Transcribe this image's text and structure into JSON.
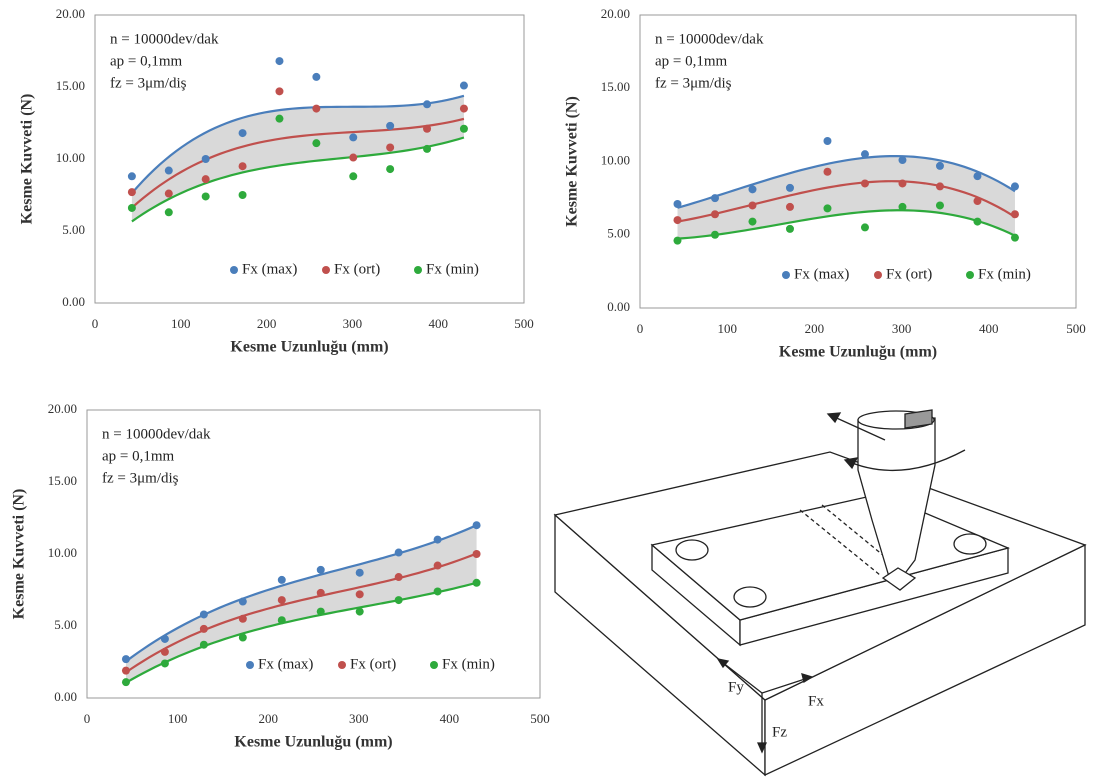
{
  "chart_data": [
    {
      "type": "scatter",
      "annotations": [
        "n = 10000dev/dak",
        "ap = 0,1mm",
        "fz = 3μm/diş"
      ],
      "x_label": "Kesme Uzunluğu (mm)",
      "y_label": "Kesme Kuvveti (N)",
      "x": [
        43,
        86,
        129,
        172,
        215,
        258,
        301,
        344,
        387,
        430
      ],
      "series": [
        {
          "name": "Fx (max)",
          "color": "#4a7ebb",
          "values": [
            8.8,
            9.2,
            10.0,
            11.8,
            16.8,
            15.7,
            11.5,
            12.3,
            13.8,
            15.1
          ]
        },
        {
          "name": "Fx (ort)",
          "color": "#c0504d",
          "values": [
            7.7,
            7.6,
            8.6,
            9.5,
            14.7,
            13.5,
            10.1,
            10.8,
            12.1,
            13.5
          ]
        },
        {
          "name": "Fx (min)",
          "color": "#2eaa3c",
          "values": [
            6.6,
            6.3,
            7.4,
            7.5,
            12.8,
            11.1,
            8.8,
            9.3,
            10.7,
            12.1
          ]
        }
      ],
      "xlim": [
        0,
        500
      ],
      "xticks": [
        0,
        100,
        200,
        300,
        400,
        500
      ],
      "ylim": [
        0,
        20
      ],
      "yticks": [
        {
          "value": 0,
          "label": "0.00"
        },
        {
          "value": 5,
          "label": "5.00"
        },
        {
          "value": 10,
          "label": "10.00"
        },
        {
          "value": 15,
          "label": "15.00"
        },
        {
          "value": 20,
          "label": "20.00"
        }
      ],
      "grid": false,
      "legend": "lower right",
      "trendline": {
        "type": "polynomial",
        "order": 3
      },
      "band_color": "#d9d9d9"
    },
    {
      "type": "scatter",
      "annotations": [
        "n = 10000dev/dak",
        "ap = 0,1mm",
        "fz = 3μm/diş"
      ],
      "x_label": "Kesme Uzunluğu (mm)",
      "y_label": "Kesme Kuvveti (N)",
      "x": [
        43,
        86,
        129,
        172,
        215,
        258,
        301,
        344,
        387,
        430
      ],
      "series": [
        {
          "name": "Fx (max)",
          "color": "#4a7ebb",
          "values": [
            7.1,
            7.5,
            8.1,
            8.2,
            11.4,
            10.5,
            10.1,
            9.7,
            9.0,
            8.3
          ]
        },
        {
          "name": "Fx (ort)",
          "color": "#c0504d",
          "values": [
            6.0,
            6.4,
            7.0,
            6.9,
            9.3,
            8.5,
            8.5,
            8.3,
            7.3,
            6.4
          ]
        },
        {
          "name": "Fx (min)",
          "color": "#2eaa3c",
          "values": [
            4.6,
            5.0,
            5.9,
            5.4,
            6.8,
            5.5,
            6.9,
            7.0,
            5.9,
            4.8
          ]
        }
      ],
      "xlim": [
        0,
        500
      ],
      "xticks": [
        0,
        100,
        200,
        300,
        400,
        500
      ],
      "ylim": [
        0,
        20
      ],
      "yticks": [
        {
          "value": 0,
          "label": "0.00"
        },
        {
          "value": 5,
          "label": "5.00"
        },
        {
          "value": 10,
          "label": "10.00"
        },
        {
          "value": 15,
          "label": "15.00"
        },
        {
          "value": 20,
          "label": "20.00"
        }
      ],
      "grid": false,
      "legend": "lower right",
      "trendline": {
        "type": "polynomial",
        "order": 3
      },
      "band_color": "#d9d9d9"
    },
    {
      "type": "scatter",
      "annotations": [
        "n = 10000dev/dak",
        "ap = 0,1mm",
        "fz = 3μm/diş"
      ],
      "x_label": "Kesme Uzunluğu (mm)",
      "y_label": "Kesme Kuvveti (N)",
      "x": [
        43,
        86,
        129,
        172,
        215,
        258,
        301,
        344,
        387,
        430
      ],
      "series": [
        {
          "name": "Fx (max)",
          "color": "#4a7ebb",
          "values": [
            2.7,
            4.1,
            5.8,
            6.7,
            8.2,
            8.9,
            8.7,
            10.1,
            11.0,
            12.0
          ]
        },
        {
          "name": "Fx (ort)",
          "color": "#c0504d",
          "values": [
            1.9,
            3.2,
            4.8,
            5.5,
            6.8,
            7.3,
            7.2,
            8.4,
            9.2,
            10.0
          ]
        },
        {
          "name": "Fx (min)",
          "color": "#2eaa3c",
          "values": [
            1.1,
            2.4,
            3.7,
            4.2,
            5.4,
            6.0,
            6.0,
            6.8,
            7.4,
            8.0
          ]
        }
      ],
      "xlim": [
        0,
        500
      ],
      "xticks": [
        0,
        100,
        200,
        300,
        400,
        500
      ],
      "ylim": [
        0,
        20
      ],
      "yticks": [
        {
          "value": 0,
          "label": "0.00"
        },
        {
          "value": 5,
          "label": "5.00"
        },
        {
          "value": 10,
          "label": "10.00"
        },
        {
          "value": 15,
          "label": "15.00"
        },
        {
          "value": 20,
          "label": "20.00"
        }
      ],
      "grid": false,
      "legend": "lower right",
      "trendline": {
        "type": "polynomial",
        "order": 3
      },
      "band_color": "#d9d9d9"
    }
  ],
  "diagram": {
    "labels": [
      "Fy",
      "Fx",
      "Fz"
    ]
  }
}
